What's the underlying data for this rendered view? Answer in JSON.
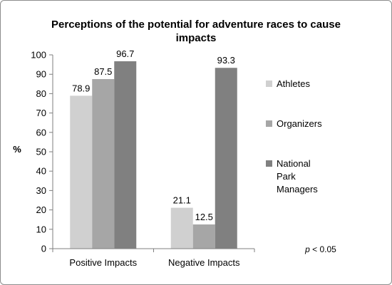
{
  "chart_data": {
    "type": "bar",
    "title": "Perceptions of the potential for adventure races to cause impacts",
    "title_lines": [
      "Perceptions of the potential for adventure races to cause",
      "impacts"
    ],
    "ylabel": "%",
    "xlabel": "",
    "ylim": [
      0,
      100
    ],
    "ytick_step": 10,
    "grid": false,
    "legend_position": "right",
    "categories": [
      "Positive Impacts",
      "Negative Impacts"
    ],
    "series": [
      {
        "name": "Athletes",
        "name_lines": [
          "Athletes"
        ],
        "values": [
          78.9,
          21.1
        ],
        "labels": [
          "78.9",
          "21.1"
        ],
        "color": "#d0d0d0"
      },
      {
        "name": "Organizers",
        "name_lines": [
          "Organizers"
        ],
        "values": [
          87.5,
          12.5
        ],
        "labels": [
          "87.5",
          "12.5"
        ],
        "color": "#a6a6a6"
      },
      {
        "name": "National Park Managers",
        "name_lines": [
          "National",
          "Park",
          "Managers"
        ],
        "values": [
          96.7,
          93.3
        ],
        "labels": [
          "96.7",
          "93.3"
        ],
        "color": "#808080"
      }
    ],
    "annotation": {
      "italic": "p",
      "rest": " < 0.05"
    }
  }
}
